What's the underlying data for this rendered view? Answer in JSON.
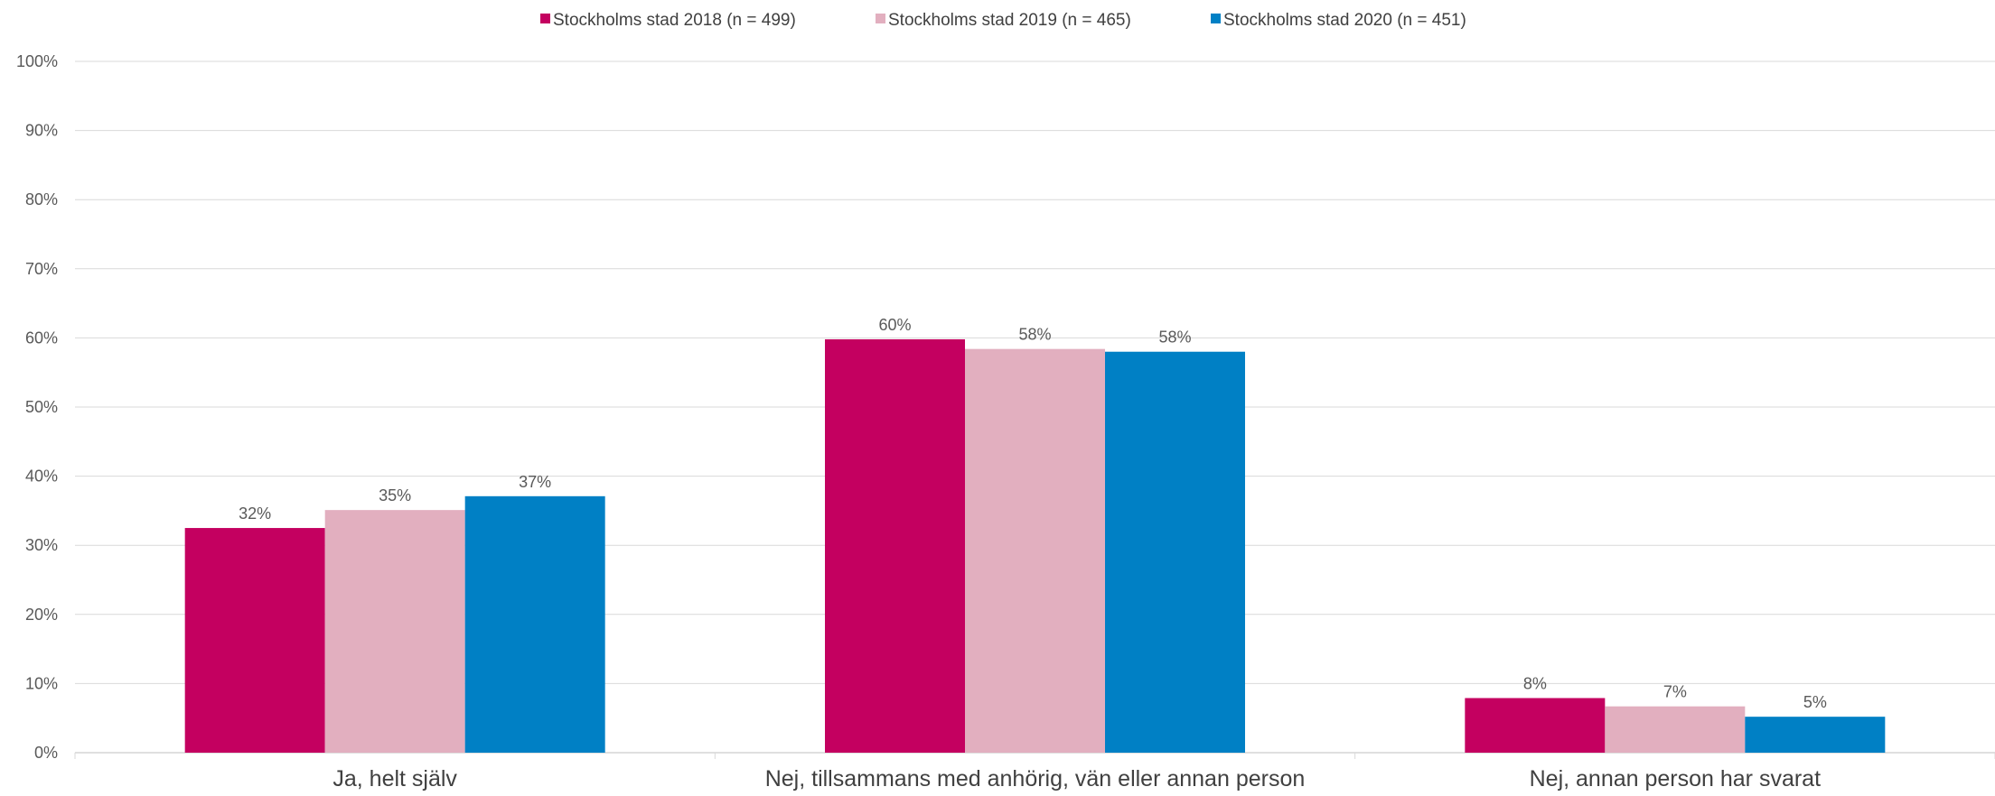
{
  "chart_data": {
    "type": "bar",
    "categories": [
      "Ja, helt själv",
      "Nej, tillsammans med anhörig, vän eller annan person",
      "Nej, annan person har svarat"
    ],
    "series": [
      {
        "name": "Stockholms stad 2018 (n = 499)",
        "color": "#C40060",
        "values": [
          32.5,
          59.8,
          7.9
        ],
        "labels": [
          "32%",
          "60%",
          "8%"
        ]
      },
      {
        "name": "Stockholms stad 2019 (n = 465)",
        "color": "#E2AFBF",
        "values": [
          35.1,
          58.4,
          6.7
        ],
        "labels": [
          "35%",
          "58%",
          "7%"
        ]
      },
      {
        "name": "Stockholms stad 2020 (n = 451)",
        "color": "#0080C5",
        "values": [
          37.1,
          58.0,
          5.2
        ],
        "labels": [
          "37%",
          "58%",
          "5%"
        ]
      }
    ],
    "yticks": [
      "0%",
      "10%",
      "20%",
      "30%",
      "40%",
      "50%",
      "60%",
      "70%",
      "80%",
      "90%",
      "100%"
    ],
    "ylim": [
      0,
      100
    ],
    "grid": true,
    "legend_position": "top-center"
  }
}
